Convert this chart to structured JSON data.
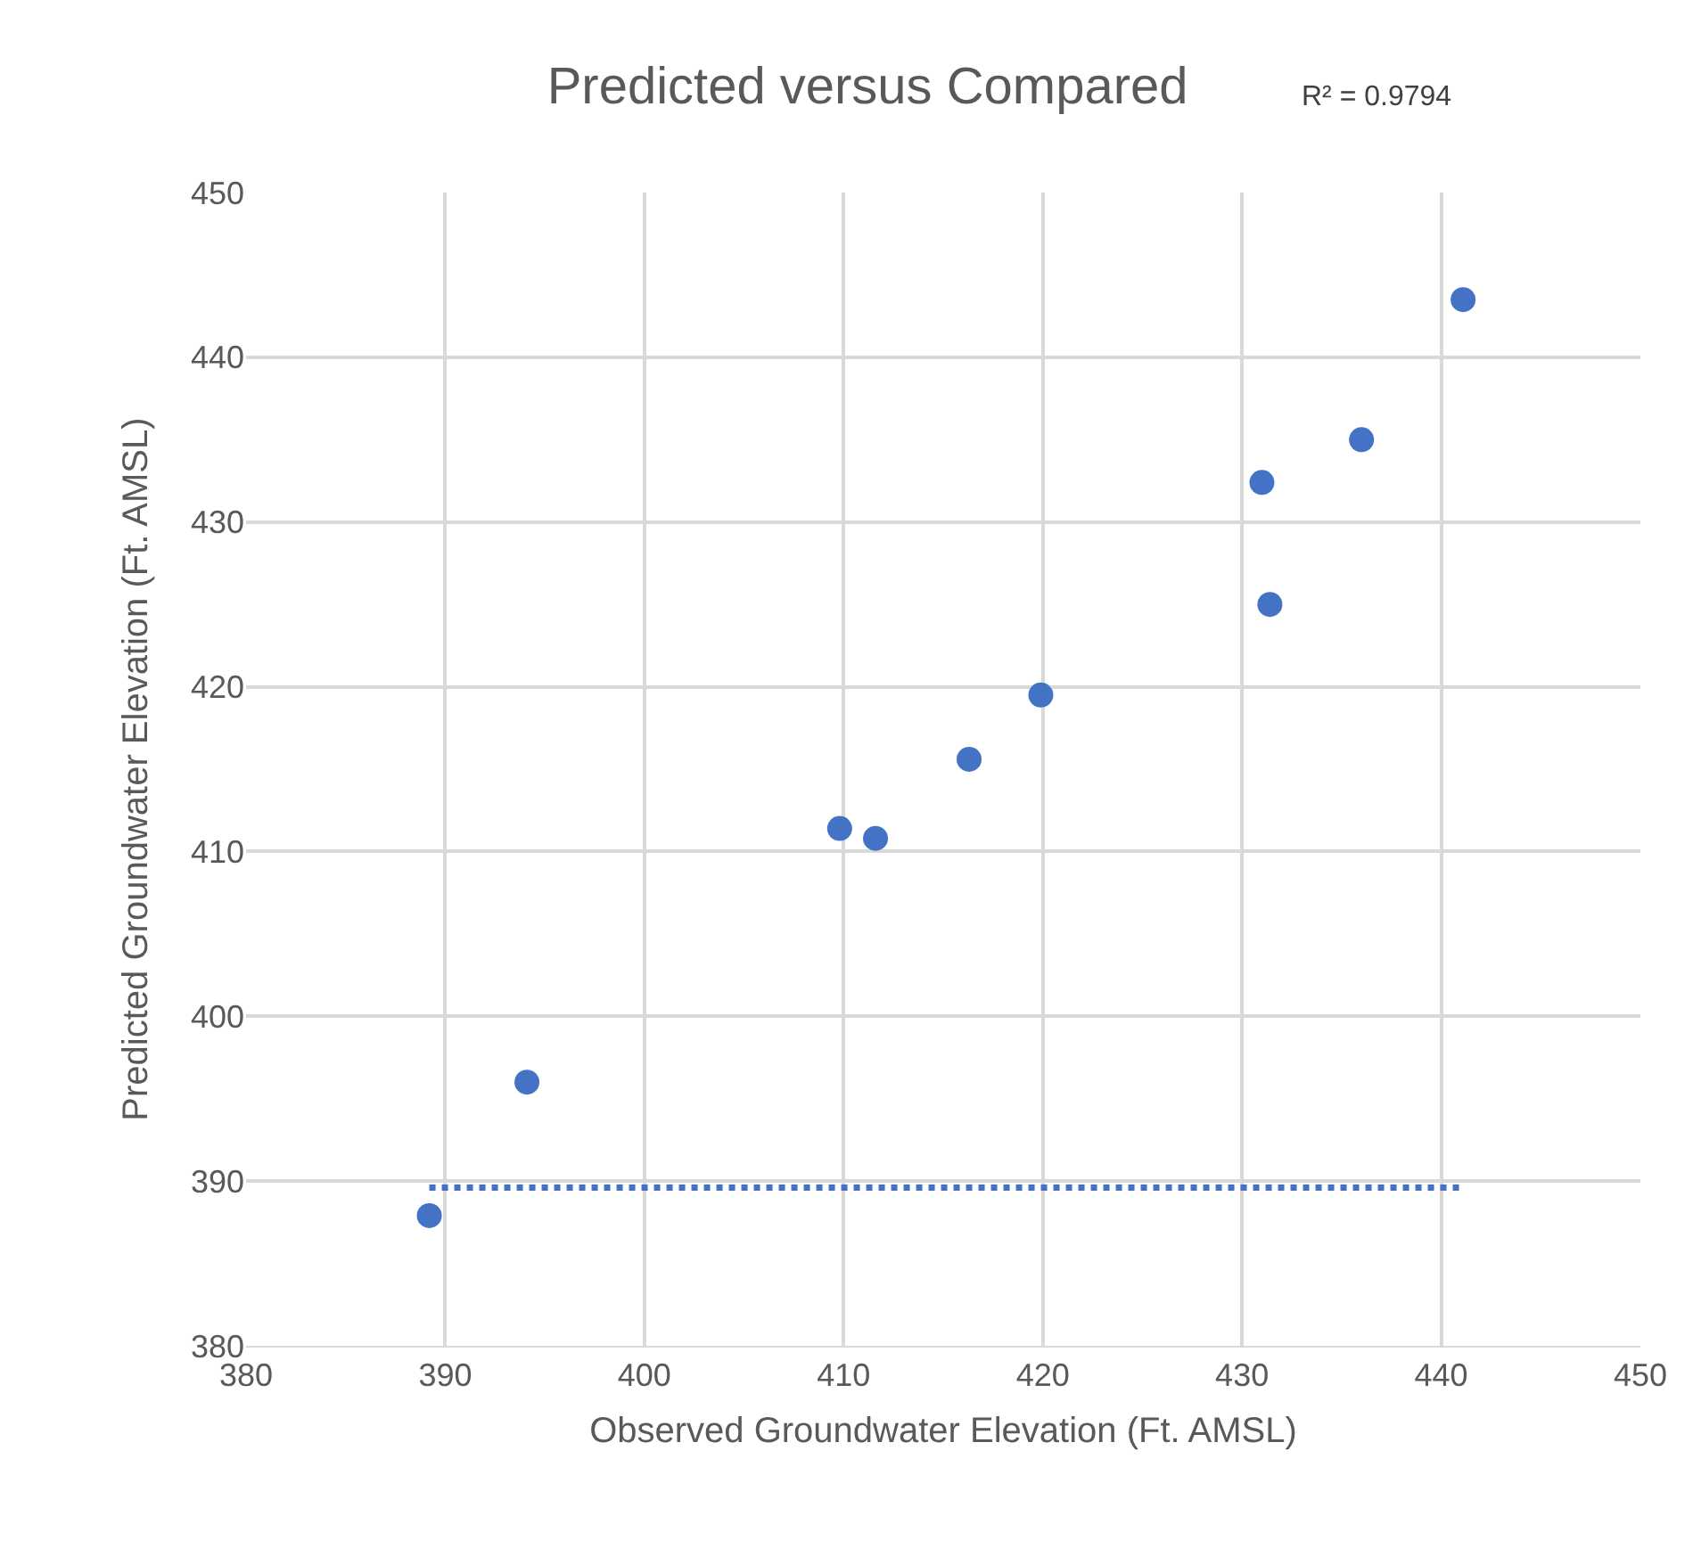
{
  "chart_data": {
    "type": "scatter",
    "title": "Predicted versus Compared",
    "xlabel": "Observed Groundwater Elevation (Ft. AMSL)",
    "ylabel": "Predicted Groundwater Elevation (Ft. AMSL)",
    "annotations": [
      "R² = 0.9794"
    ],
    "xlim": [
      380,
      450
    ],
    "xticks": [
      380,
      390,
      400,
      410,
      420,
      430,
      440,
      450
    ],
    "ylim": [
      380,
      450
    ],
    "yticks": [
      380,
      390,
      400,
      410,
      420,
      430,
      440,
      450
    ],
    "grid": true,
    "legend": false,
    "series": [
      {
        "marker": "circle",
        "color": "#4472c4",
        "x": [
          389.2,
          394.1,
          409.8,
          411.6,
          416.3,
          419.9,
          431.0,
          431.4,
          436.0,
          441.1
        ],
        "values": [
          387.9,
          396.0,
          411.4,
          410.8,
          415.6,
          419.5,
          432.4,
          425.0,
          435.0,
          443.5
        ]
      },
      {
        "type": "line",
        "color": "#4472c4",
        "line_style": "dotted",
        "x": [
          389.2,
          441.1
        ],
        "values": [
          389.6,
          389.6
        ]
      }
    ]
  }
}
